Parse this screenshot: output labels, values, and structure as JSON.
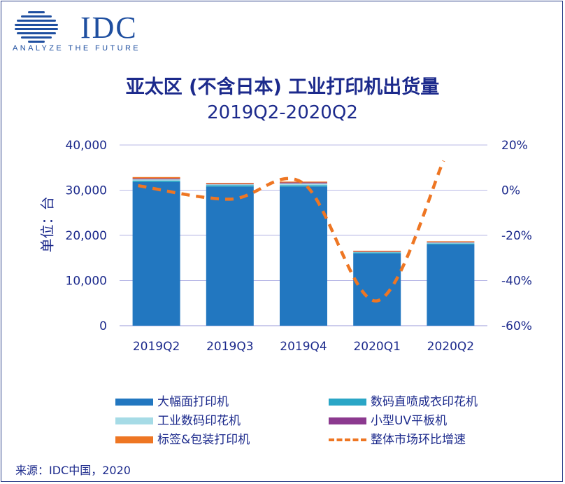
{
  "logo": {
    "text": "IDC",
    "tagline": "ANALYZE THE FUTURE"
  },
  "source": "来源：IDC中国，2020",
  "chart_data": {
    "type": "bar",
    "stacked": true,
    "title": "亚太区 (不含日本) 工业打印机出货量",
    "subtitle": "2019Q2-2020Q2",
    "ylabel": "单位：台",
    "xlabel": "",
    "categories": [
      "2019Q2",
      "2019Q3",
      "2019Q4",
      "2020Q1",
      "2020Q2"
    ],
    "ylim": [
      0,
      40000
    ],
    "y_ticks": [
      "0",
      "10,000",
      "20,000",
      "30,000",
      "40,000"
    ],
    "y2lim": [
      -60,
      20
    ],
    "y2_ticks": [
      "-60%",
      "-40%",
      "-20%",
      "0%",
      "20%"
    ],
    "grid": true,
    "legend_position": "bottom",
    "series": [
      {
        "name": "大幅面打印机",
        "type": "bar",
        "color": "#2277c0",
        "values": [
          31800,
          30800,
          30800,
          16000,
          18000
        ]
      },
      {
        "name": "数码直喷成衣印花机",
        "type": "bar",
        "color": "#2aa6c6",
        "values": [
          300,
          300,
          300,
          200,
          200
        ]
      },
      {
        "name": "工业数码印花机",
        "type": "bar",
        "color": "#a6dbe6",
        "values": [
          300,
          200,
          400,
          100,
          200
        ]
      },
      {
        "name": "小型UV平板机",
        "type": "bar",
        "color": "#8c3a8f",
        "values": [
          200,
          100,
          200,
          100,
          100
        ]
      },
      {
        "name": "标签&包装打印机",
        "type": "bar",
        "color": "#ee7623",
        "values": [
          300,
          200,
          200,
          200,
          200
        ]
      },
      {
        "name": "整体市场环比增速",
        "type": "line",
        "axis": "right",
        "color": "#ee7623",
        "dashed": true,
        "values": [
          2,
          -4,
          3,
          -49,
          13
        ]
      }
    ]
  }
}
